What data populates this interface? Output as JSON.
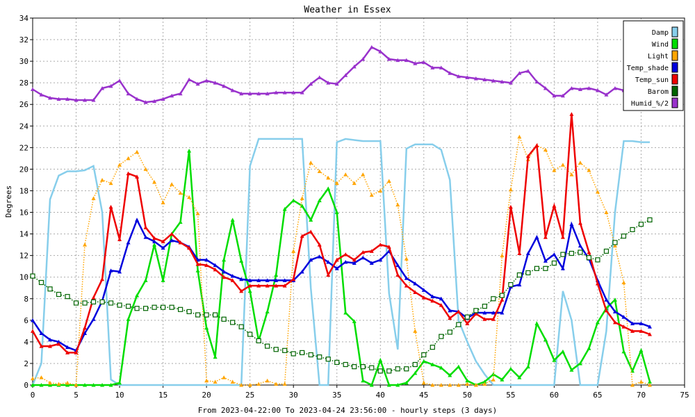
{
  "chart_data": {
    "type": "line",
    "title": "Weather in Essex",
    "xlabel": "From 2023-04-22:00 To 2023-04-24 23:56:00 - hourly steps (3 days)",
    "ylabel": "Degrees",
    "xlim": [
      0,
      75
    ],
    "ylim": [
      0,
      34
    ],
    "xticks": [
      0,
      5,
      10,
      15,
      20,
      25,
      30,
      35,
      40,
      45,
      50,
      55,
      60,
      65,
      70,
      75
    ],
    "yticks": [
      0,
      2,
      4,
      6,
      8,
      10,
      12,
      14,
      16,
      18,
      20,
      22,
      24,
      26,
      28,
      30,
      32,
      34
    ],
    "grid": true,
    "legend_position": "top-right",
    "x": [
      0,
      1,
      2,
      3,
      4,
      5,
      6,
      7,
      8,
      9,
      10,
      11,
      12,
      13,
      14,
      15,
      16,
      17,
      18,
      19,
      20,
      21,
      22,
      23,
      24,
      25,
      26,
      27,
      28,
      29,
      30,
      31,
      32,
      33,
      34,
      35,
      36,
      37,
      38,
      39,
      40,
      41,
      42,
      43,
      44,
      45,
      46,
      47,
      48,
      49,
      50,
      51,
      52,
      53,
      54,
      55,
      56,
      57,
      58,
      59,
      60,
      61,
      62,
      63,
      64,
      65,
      66,
      67,
      68,
      69,
      70,
      71
    ],
    "series": [
      {
        "name": "Damp",
        "color": "#87ceeb",
        "marker": "none",
        "values": [
          0,
          2,
          17.2,
          19.4,
          19.8,
          19.8,
          19.9,
          20.3,
          16,
          0.5,
          0,
          0,
          0,
          0,
          0,
          0,
          0,
          0,
          0,
          0,
          0,
          0,
          0,
          0,
          0,
          20.3,
          22.8,
          22.8,
          22.8,
          22.8,
          22.8,
          22.8,
          9,
          0,
          0,
          22.5,
          22.8,
          22.7,
          22.6,
          22.6,
          22.6,
          8.5,
          3.3,
          21.9,
          22.3,
          22.3,
          22.3,
          21.8,
          19,
          6,
          4,
          2.2,
          1,
          0,
          0,
          0,
          0,
          0,
          0,
          0,
          0,
          8.7,
          6,
          0,
          0,
          0,
          5,
          16,
          22.6,
          22.6,
          22.5,
          22.5
        ]
      },
      {
        "name": "Wind",
        "color": "#00dd00",
        "marker": "triangle",
        "values": [
          0,
          0,
          0,
          0,
          0,
          0,
          0,
          0,
          0,
          0,
          0.2,
          6.1,
          8.3,
          9.7,
          13,
          9.7,
          14,
          15.1,
          21.7,
          10.6,
          5.3,
          2.6,
          11.6,
          15.3,
          11.5,
          8.7,
          4.1,
          6.8,
          10.2,
          16.3,
          17.1,
          16.6,
          15.3,
          17.1,
          18.2,
          16,
          6.7,
          5.9,
          0.4,
          0,
          2.3,
          0,
          0,
          0.2,
          1.1,
          2.2,
          1.9,
          1.6,
          0.9,
          1.7,
          0.4,
          0,
          0.3,
          1,
          0.5,
          1.5,
          0.7,
          1.7,
          5.7,
          4.2,
          2.3,
          3.1,
          1.4,
          2,
          3.4,
          5.8,
          7.1,
          7.9,
          3.1,
          1.3,
          3.2,
          0.3
        ]
      },
      {
        "name": "Light",
        "color": "#ffa500",
        "marker": "triangle",
        "dotted": true,
        "values": [
          0.6,
          0.7,
          0.2,
          0.1,
          0.2,
          0,
          13,
          17.3,
          19,
          18.7,
          20.4,
          21,
          21.6,
          20,
          18.8,
          16.9,
          18.6,
          17.8,
          17.4,
          15.9,
          0.4,
          0.3,
          0.7,
          0.3,
          0,
          0,
          0.1,
          0.4,
          0.1,
          0.1,
          12.4,
          17.3,
          20.6,
          19.8,
          19.2,
          18.7,
          19.5,
          18.7,
          19.5,
          17.6,
          18,
          18.9,
          16.7,
          11.7,
          5,
          0.2,
          0,
          0,
          0,
          0,
          0.1,
          0,
          0.1,
          0.5,
          12,
          18.1,
          23,
          20.9,
          22.2,
          21.8,
          19.9,
          20.4,
          19.5,
          20.6,
          19.9,
          17.9,
          16,
          12.9,
          9.5,
          0,
          0.3,
          0
        ]
      },
      {
        "name": "Temp_shade",
        "color": "#0000dd",
        "marker": "triangle",
        "values": [
          6,
          4.8,
          4.2,
          4,
          3.5,
          3.2,
          4.8,
          6.1,
          7.8,
          10.6,
          10.5,
          13.2,
          15.3,
          13.7,
          13.3,
          12.7,
          13.4,
          13.2,
          12.8,
          11.6,
          11.6,
          11.1,
          10.5,
          10.1,
          9.8,
          9.7,
          9.7,
          9.7,
          9.7,
          9.7,
          9.7,
          10.5,
          11.6,
          11.9,
          11.4,
          10.8,
          11.4,
          11.3,
          11.8,
          11.3,
          11.6,
          12.4,
          11.1,
          9.9,
          9.4,
          8.8,
          8.2,
          8,
          6.9,
          6.8,
          6.2,
          6.7,
          6.7,
          6.7,
          6.7,
          9.1,
          9.3,
          12.2,
          13.7,
          11.5,
          12.1,
          10.8,
          14.9,
          12.9,
          11.7,
          9.7,
          7.9,
          6.8,
          6.3,
          5.7,
          5.7,
          5.4
        ]
      },
      {
        "name": "Temp_sun",
        "color": "#ee0000",
        "marker": "triangle",
        "values": [
          5,
          3.6,
          3.6,
          3.8,
          3,
          3,
          5.3,
          8.1,
          9.8,
          16.5,
          13.5,
          19.6,
          19.3,
          14.6,
          13.6,
          13.3,
          14,
          13.2,
          12.7,
          11.2,
          11.1,
          10.7,
          10,
          9.7,
          8.7,
          9.2,
          9.2,
          9.2,
          9.2,
          9.2,
          9.8,
          13.8,
          14.2,
          13,
          10.2,
          11.6,
          12.1,
          11.6,
          12.3,
          12.4,
          13,
          12.8,
          10.2,
          9.2,
          8.6,
          8.1,
          7.8,
          7.4,
          6.2,
          6.8,
          5.7,
          6.6,
          6.1,
          6.1,
          7.9,
          16.5,
          12.2,
          21.2,
          22.2,
          13.7,
          16.6,
          13.7,
          25.1,
          15,
          12.3,
          9.4,
          6.9,
          5.8,
          5.4,
          5,
          5,
          4.7
        ]
      },
      {
        "name": "Barom",
        "color": "#006400",
        "marker": "square",
        "dotted": true,
        "values": [
          10.1,
          9.5,
          8.9,
          8.4,
          8.2,
          7.6,
          7.6,
          7.7,
          7.7,
          7.6,
          7.4,
          7.3,
          7.1,
          7.1,
          7.2,
          7.2,
          7.2,
          7,
          6.8,
          6.5,
          6.5,
          6.5,
          6.1,
          5.8,
          5.4,
          4.7,
          4.1,
          3.6,
          3.3,
          3.2,
          2.9,
          3,
          2.8,
          2.6,
          2.4,
          2.1,
          1.9,
          1.7,
          1.7,
          1.6,
          1.3,
          1.3,
          1.5,
          1.5,
          1.9,
          2.8,
          3.5,
          4.5,
          4.9,
          5.6,
          6.3,
          6.9,
          7.3,
          8,
          8.3,
          9.3,
          10.2,
          10.4,
          10.8,
          10.8,
          11.3,
          12.1,
          12.2,
          12.3,
          11.8,
          11.6,
          12.4,
          13.2,
          13.8,
          14.4,
          14.9,
          15.3
        ]
      },
      {
        "name": "Humid_%/2",
        "color": "#9932cc",
        "marker": "triangle",
        "values": [
          27.4,
          26.9,
          26.6,
          26.5,
          26.5,
          26.4,
          26.4,
          26.4,
          27.5,
          27.7,
          28.2,
          27,
          26.5,
          26.2,
          26.3,
          26.5,
          26.8,
          27,
          28.3,
          27.9,
          28.2,
          28,
          27.7,
          27.3,
          27,
          27,
          27,
          27,
          27.1,
          27.1,
          27.1,
          27.1,
          27.9,
          28.5,
          28,
          27.9,
          28.7,
          29.5,
          30.2,
          31.3,
          30.9,
          30.2,
          30.1,
          30.1,
          29.8,
          29.9,
          29.4,
          29.4,
          28.9,
          28.6,
          28.5,
          28.4,
          28.3,
          28.2,
          28.1,
          28,
          28.9,
          29.1,
          28.1,
          27.5,
          26.8,
          26.8,
          27.5,
          27.4,
          27.5,
          27.3,
          26.9,
          27.5,
          27.3,
          27.4,
          27.6,
          27.5
        ]
      }
    ]
  }
}
